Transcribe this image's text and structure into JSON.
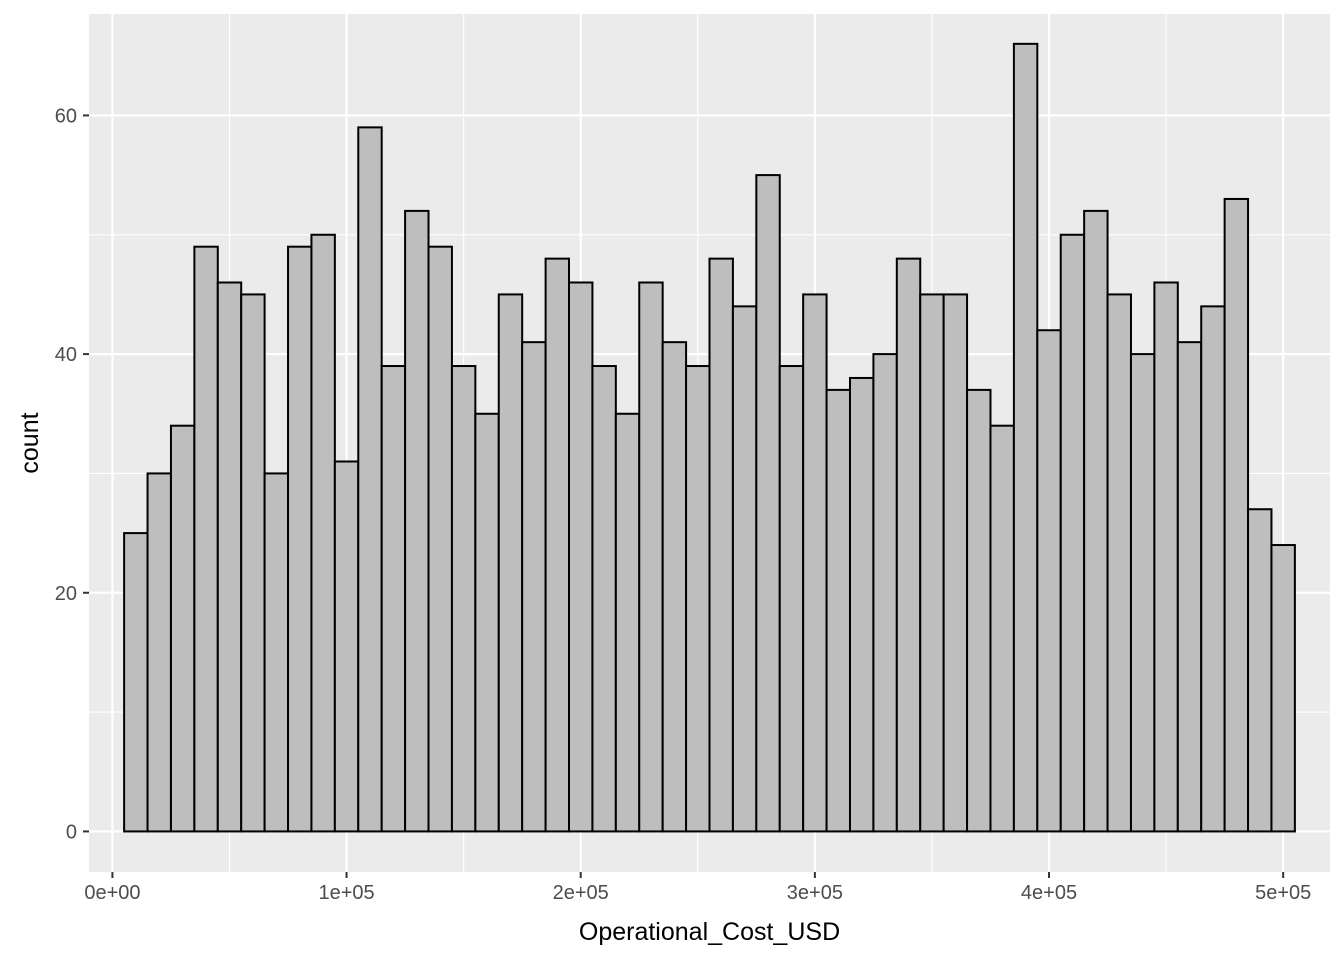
{
  "chart_data": {
    "type": "bar",
    "subtype": "histogram",
    "title": "",
    "xlabel": "Operational_Cost_USD",
    "ylabel": "count",
    "xlim": [
      -10000,
      520000
    ],
    "ylim": [
      -3.4,
      68.5
    ],
    "x_ticks": [
      {
        "value": 0,
        "label": "0e+00"
      },
      {
        "value": 100000,
        "label": "1e+05"
      },
      {
        "value": 200000,
        "label": "2e+05"
      },
      {
        "value": 300000,
        "label": "3e+05"
      },
      {
        "value": 400000,
        "label": "4e+05"
      },
      {
        "value": 500000,
        "label": "5e+05"
      }
    ],
    "y_ticks": [
      {
        "value": 0,
        "label": "0"
      },
      {
        "value": 20,
        "label": "20"
      },
      {
        "value": 40,
        "label": "40"
      },
      {
        "value": 60,
        "label": "60"
      }
    ],
    "bin_width": 10000,
    "bin_start": 5000,
    "counts": [
      25,
      30,
      34,
      49,
      46,
      45,
      30,
      49,
      50,
      31,
      59,
      39,
      52,
      49,
      39,
      35,
      45,
      41,
      48,
      46,
      39,
      35,
      46,
      41,
      39,
      48,
      44,
      55,
      39,
      45,
      37,
      38,
      40,
      48,
      45,
      45,
      37,
      34,
      66,
      42,
      50,
      52,
      45,
      40,
      46,
      41,
      44,
      53,
      27,
      24
    ],
    "bar_fill": "#bebebe",
    "bar_stroke": "#000000",
    "panel_background": "#ebebeb",
    "grid": true,
    "grid_color": "#ffffff",
    "legend": "none"
  }
}
